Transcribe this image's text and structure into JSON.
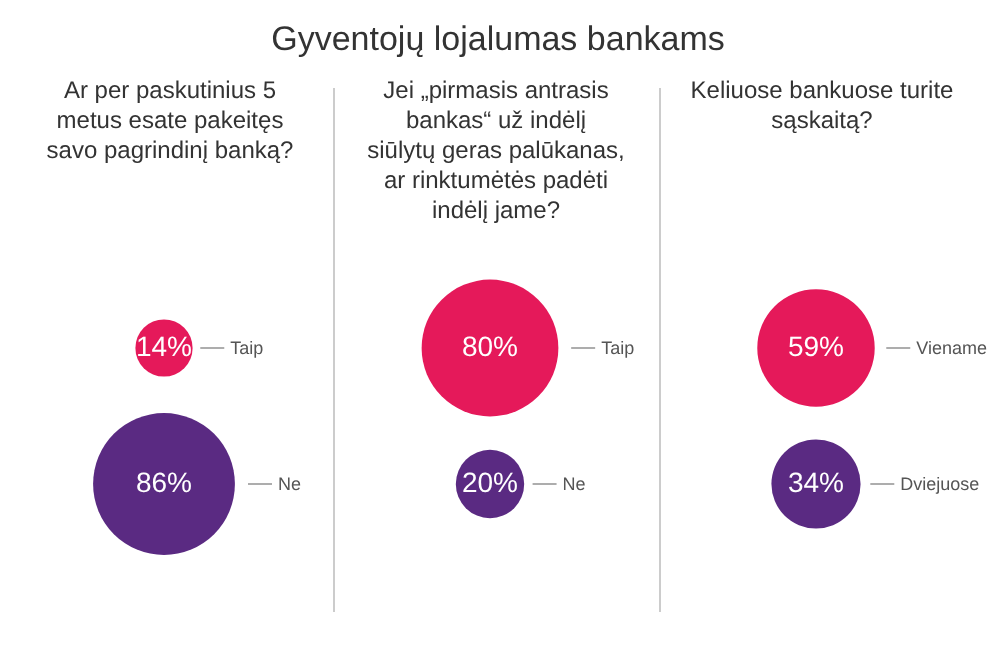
{
  "chart_data": [
    {
      "type": "other",
      "title": "Gyventojų lojalumas bankams"
    },
    {
      "type": "other",
      "title": "Ar per paskutinius 5 metus esate pakeitęs savo pagrindinį banką?",
      "categories": [
        "Taip",
        "Ne"
      ],
      "values": [
        14,
        86
      ],
      "value_labels": [
        "14%",
        "86%"
      ],
      "colors": [
        "#e5195a",
        "#5a2a82"
      ]
    },
    {
      "type": "other",
      "title": "Jei „pirmasis antrasis bankas“ už indėlį siūlytų geras palūkanas, ar rinktumėtės padėti indėlį jame?",
      "categories": [
        "Taip",
        "Ne"
      ],
      "values": [
        80,
        20
      ],
      "value_labels": [
        "80%",
        "20%"
      ],
      "colors": [
        "#e5195a",
        "#5a2a82"
      ]
    },
    {
      "type": "other",
      "title": "Keliuose bankuose turite sąskaitą?",
      "categories": [
        "Viename",
        "Dviejuose"
      ],
      "values": [
        59,
        34
      ],
      "value_labels": [
        "59%",
        "34%"
      ],
      "colors": [
        "#e5195a",
        "#5a2a82"
      ]
    }
  ]
}
